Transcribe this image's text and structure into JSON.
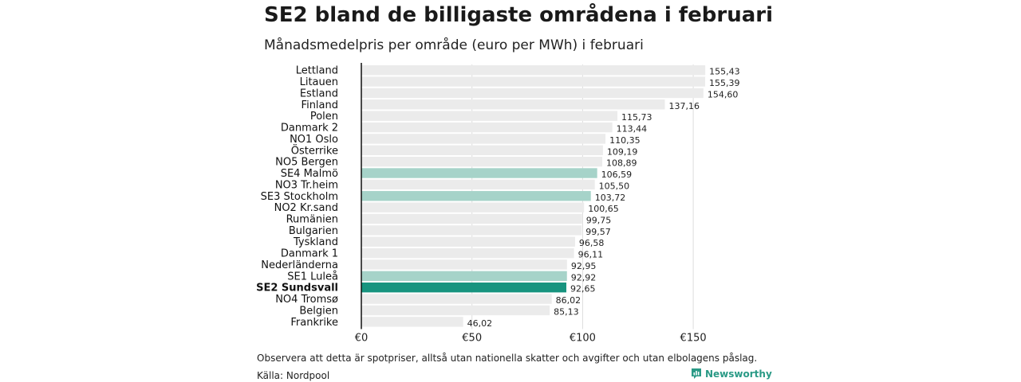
{
  "title": "SE2 bland de billigaste områdena i februari",
  "subtitle": "Månadsmedelpris per område (euro per MWh) i februari",
  "note": "Observera att detta är spotpriser, alltså utan nationella skatter och avgifter och utan elbolagens påslag.",
  "source": "Källa: Nordpool",
  "brand": {
    "name": "Newsworthy",
    "logo_icon": "bar-chart-icon"
  },
  "colors": {
    "default_bar": "#ebebeb",
    "highlight_bar": "#a6d3c9",
    "focus_bar": "#17947f",
    "brand": "#2a9a86"
  },
  "chart_data": {
    "type": "bar",
    "orientation": "horizontal",
    "title": "Månadsmedelpris per område (euro per MWh) i februari",
    "xlabel": "",
    "ylabel": "",
    "xlim": [
      0,
      150
    ],
    "grid": true,
    "x_ticks": [
      {
        "value": 0,
        "label": "€0"
      },
      {
        "value": 50,
        "label": "€50"
      },
      {
        "value": 100,
        "label": "€100"
      },
      {
        "value": 150,
        "label": "€150"
      }
    ],
    "categories": [
      "Lettland",
      "Litauen",
      "Estland",
      "Finland",
      "Polen",
      "Danmark  2",
      "NO1 Oslo",
      "Österrike",
      "NO5 Bergen",
      "SE4  Malmö",
      "NO3 Tr.heim",
      "SE3  Stockholm",
      "NO2 Kr.sand",
      "Rumänien",
      "Bulgarien",
      "Tyskland",
      "Danmark  1",
      "Nederländerna",
      "SE1  Luleå",
      "SE2 Sundsvall",
      "NO4 Tromsø",
      "Belgien",
      "Frankrike"
    ],
    "values": [
      155.43,
      155.39,
      154.6,
      137.16,
      115.73,
      113.44,
      110.35,
      109.19,
      108.89,
      106.59,
      105.5,
      103.72,
      100.65,
      99.75,
      99.57,
      96.58,
      96.11,
      92.95,
      92.92,
      92.65,
      86.02,
      85.13,
      46.02
    ],
    "value_labels": [
      "155,43",
      "155,39",
      "154,60",
      "137,16",
      "115,73",
      "113,44",
      "110,35",
      "109,19",
      "108,89",
      "106,59",
      "105,50",
      "103,72",
      "100,65",
      "99,75",
      "99,57",
      "96,58",
      "96,11",
      "92,95",
      "92,92",
      "92,65",
      "86,02",
      "85,13",
      "46,02"
    ],
    "highlight": [
      "normal",
      "normal",
      "normal",
      "normal",
      "normal",
      "normal",
      "normal",
      "normal",
      "normal",
      "highlight",
      "normal",
      "highlight",
      "normal",
      "normal",
      "normal",
      "normal",
      "normal",
      "normal",
      "highlight",
      "focus",
      "normal",
      "normal",
      "normal"
    ]
  }
}
